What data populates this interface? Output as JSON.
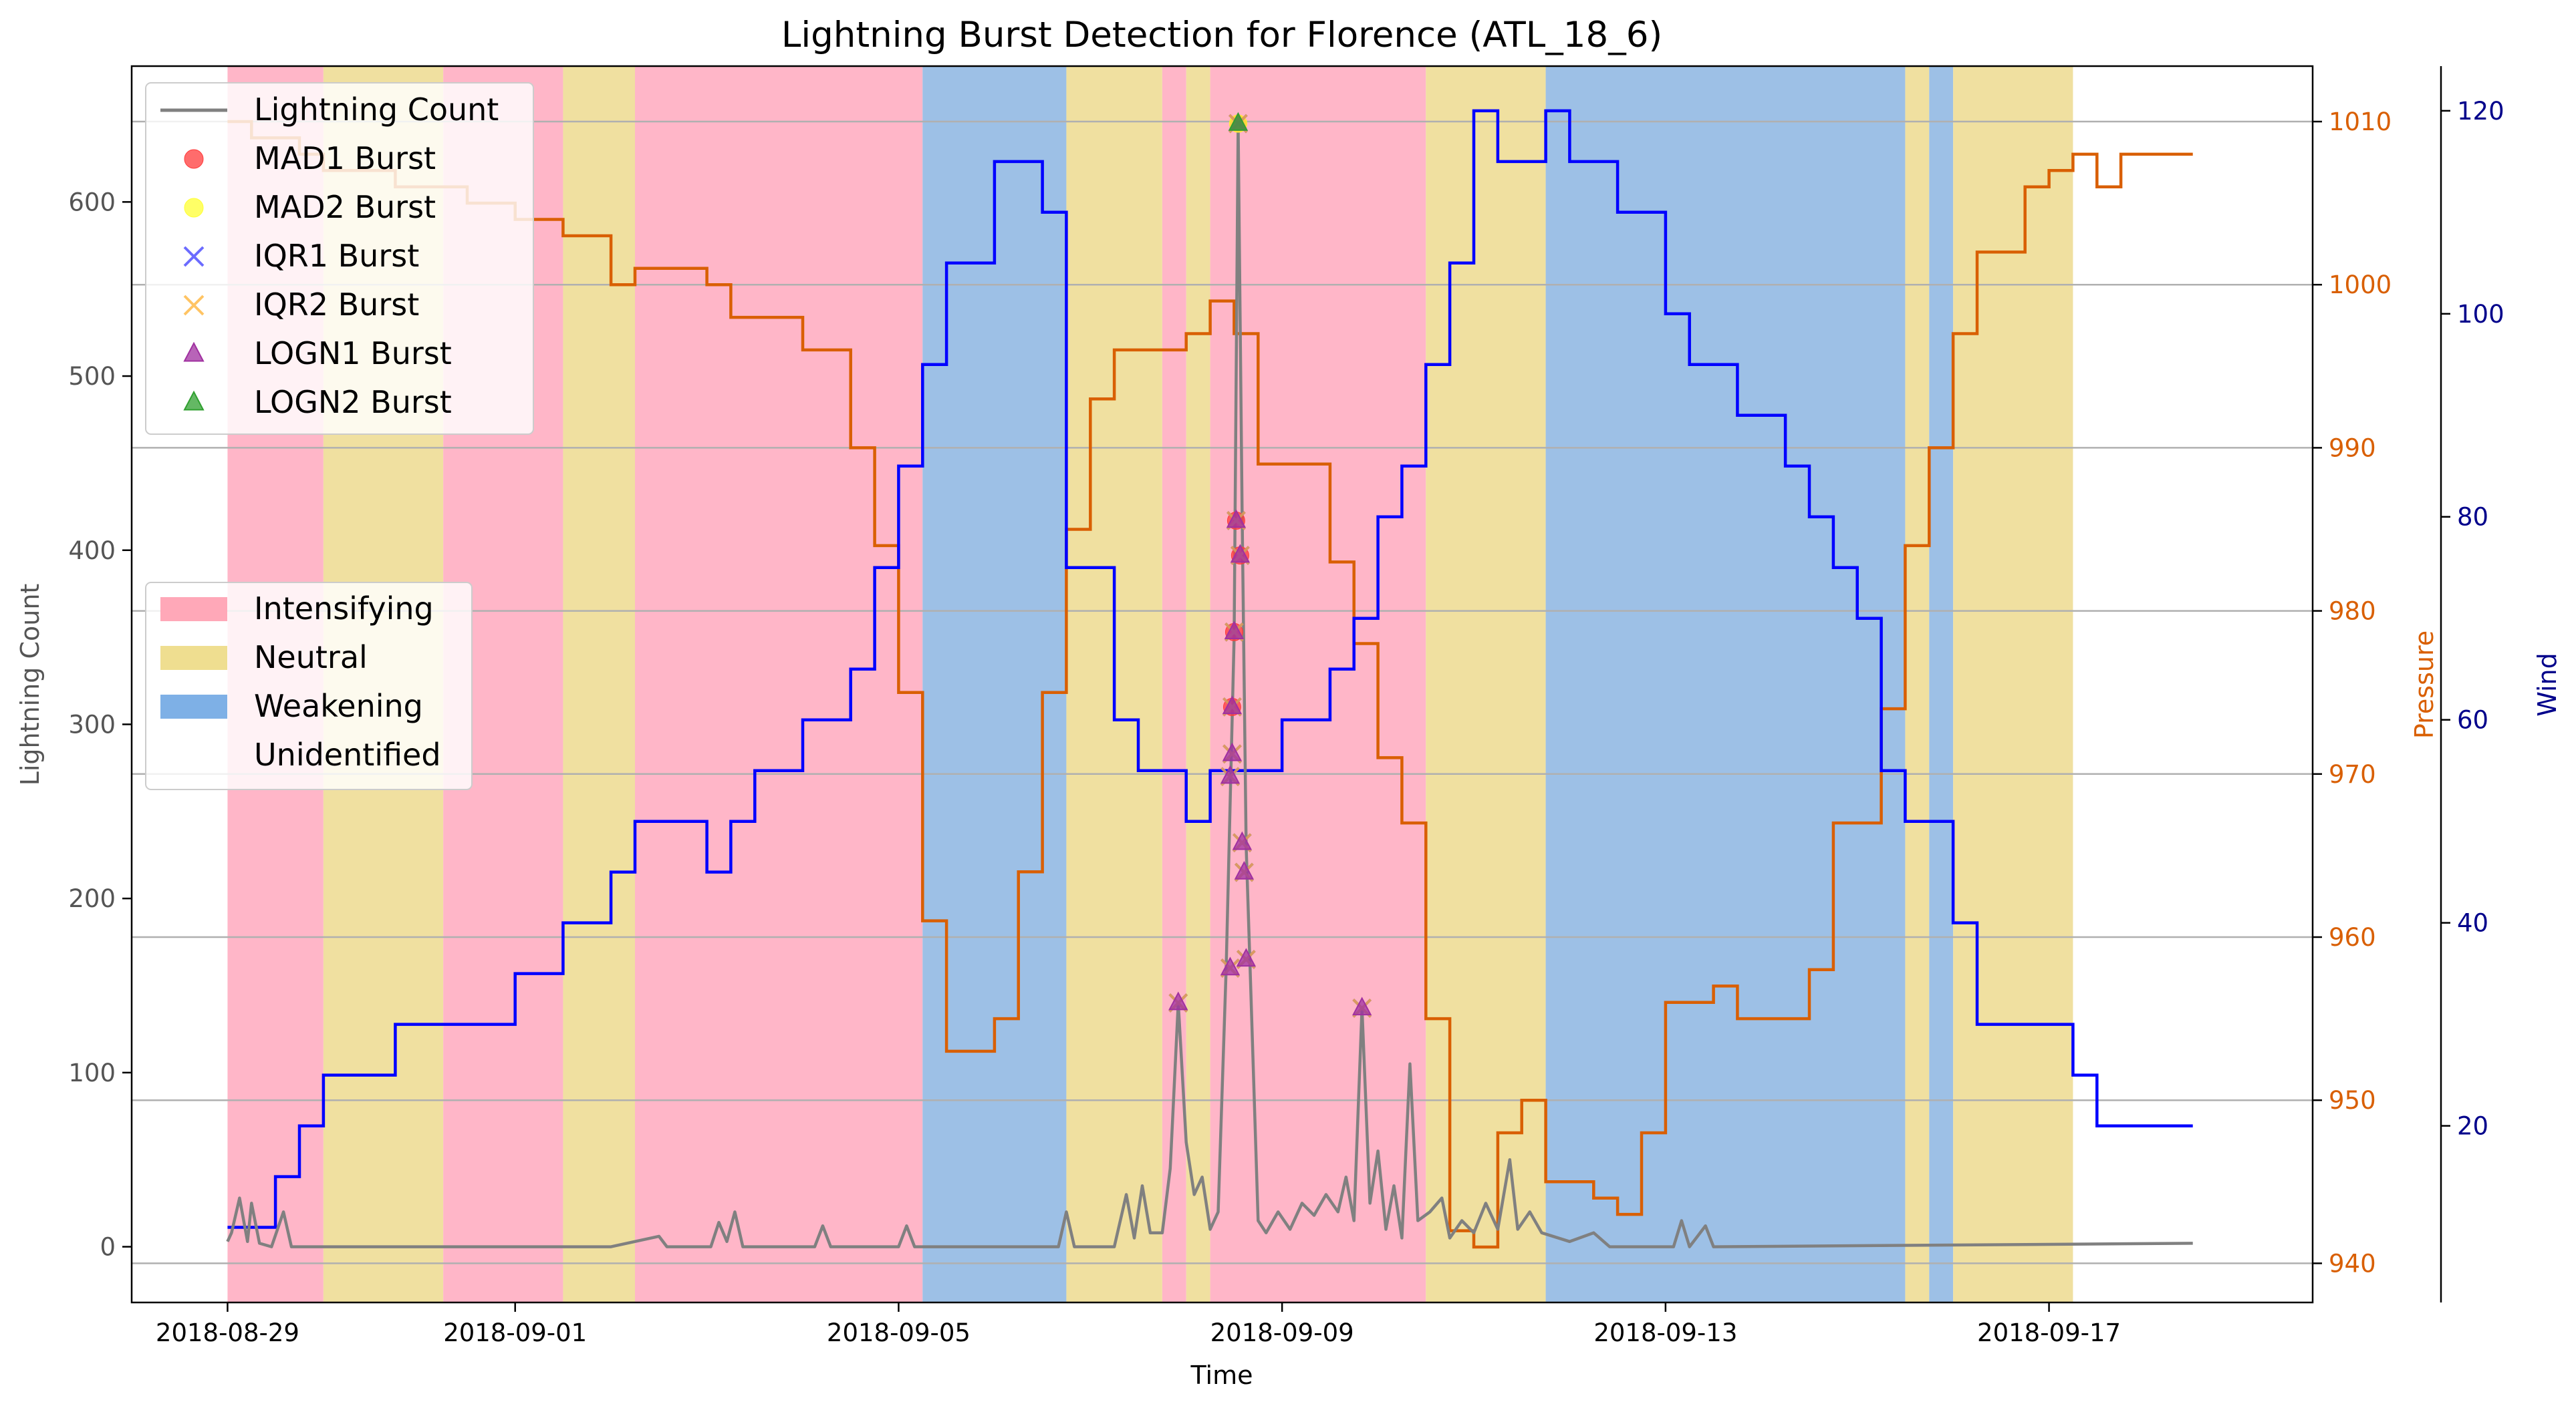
{
  "chart_data": {
    "type": "line",
    "title": "Lightning Burst Detection for Florence (ATL_18_6)",
    "xlabel": "Time",
    "ylabel": "Lightning Count",
    "ylabel_right1": "Pressure",
    "ylabel_right2": "Wind",
    "colors": {
      "lightning": "#808080",
      "pressure": "#d95f02",
      "wind": "#0000ff",
      "intensifying": "#ffb6c8",
      "neutral": "#f0e0a0",
      "weakening": "#9dc0e6",
      "mad1": "#ff3b3b",
      "mad2": "#ffff33",
      "iqr1": "#3b3bff",
      "iqr2": "#ffb030",
      "logn1": "#a030a0",
      "logn2": "#30a030"
    },
    "x_ticks": [
      "2018-08-29",
      "2018-09-01",
      "2018-09-05",
      "2018-09-09",
      "2018-09-13",
      "2018-09-17"
    ],
    "xlim": [
      "2018-08-28 00:00",
      "2018-09-19 18:00"
    ],
    "y_ticks": [
      0,
      100,
      200,
      300,
      400,
      500,
      600
    ],
    "ylim": [
      -32,
      678
    ],
    "pressure_ticks": [
      940,
      950,
      960,
      970,
      980,
      990,
      1000,
      1010
    ],
    "pressure_lim": [
      937.6,
      1013.4
    ],
    "wind_ticks": [
      20,
      40,
      60,
      80,
      100,
      120
    ],
    "wind_lim": [
      2.6,
      124.4
    ],
    "grid": "horizontal lines at pressure ticks",
    "legend_lines": [
      {
        "key": "lightning",
        "label": "Lightning Count",
        "marker": "line"
      },
      {
        "key": "mad1",
        "label": "MAD1 Burst",
        "marker": "circle"
      },
      {
        "key": "mad2",
        "label": "MAD2 Burst",
        "marker": "circle"
      },
      {
        "key": "iqr1",
        "label": "IQR1 Burst",
        "marker": "x"
      },
      {
        "key": "iqr2",
        "label": "IQR2 Burst",
        "marker": "x"
      },
      {
        "key": "logn1",
        "label": "LOGN1 Burst",
        "marker": "triangle"
      },
      {
        "key": "logn2",
        "label": "LOGN2 Burst",
        "marker": "triangle"
      }
    ],
    "legend_regions": [
      {
        "key": "intensifying",
        "label": "Intensifying"
      },
      {
        "key": "neutral",
        "label": "Neutral"
      },
      {
        "key": "weakening",
        "label": "Weakening"
      },
      {
        "key": "unidentified",
        "label": "Unidentified"
      }
    ],
    "regions": [
      {
        "state": "intensifying",
        "start": "2018-08-29 00:00",
        "end": "2018-08-30 00:00"
      },
      {
        "state": "neutral",
        "start": "2018-08-30 00:00",
        "end": "2018-08-31 06:00"
      },
      {
        "state": "intensifying",
        "start": "2018-08-31 06:00",
        "end": "2018-09-01 12:00"
      },
      {
        "state": "neutral",
        "start": "2018-09-01 12:00",
        "end": "2018-09-02 06:00"
      },
      {
        "state": "intensifying",
        "start": "2018-09-02 06:00",
        "end": "2018-09-05 06:00"
      },
      {
        "state": "weakening",
        "start": "2018-09-05 06:00",
        "end": "2018-09-06 18:00"
      },
      {
        "state": "neutral",
        "start": "2018-09-06 18:00",
        "end": "2018-09-07 18:00"
      },
      {
        "state": "intensifying",
        "start": "2018-09-07 18:00",
        "end": "2018-09-08 00:00"
      },
      {
        "state": "neutral",
        "start": "2018-09-08 00:00",
        "end": "2018-09-08 06:00"
      },
      {
        "state": "intensifying",
        "start": "2018-09-08 06:00",
        "end": "2018-09-10 12:00"
      },
      {
        "state": "neutral",
        "start": "2018-09-10 12:00",
        "end": "2018-09-11 18:00"
      },
      {
        "state": "weakening",
        "start": "2018-09-11 18:00",
        "end": "2018-09-15 12:00"
      },
      {
        "state": "neutral",
        "start": "2018-09-15 12:00",
        "end": "2018-09-15 18:00"
      },
      {
        "state": "weakening",
        "start": "2018-09-15 18:00",
        "end": "2018-09-16 00:00"
      },
      {
        "state": "neutral",
        "start": "2018-09-16 00:00",
        "end": "2018-09-17 06:00"
      }
    ],
    "pressure_series": [
      [
        "2018-08-29 00:00",
        1010
      ],
      [
        "2018-08-29 06:00",
        1009
      ],
      [
        "2018-08-29 18:00",
        1008
      ],
      [
        "2018-08-30 00:00",
        1007
      ],
      [
        "2018-08-30 18:00",
        1006
      ],
      [
        "2018-08-31 12:00",
        1005
      ],
      [
        "2018-09-01 00:00",
        1004
      ],
      [
        "2018-09-01 12:00",
        1003
      ],
      [
        "2018-09-02 00:00",
        1000
      ],
      [
        "2018-09-02 06:00",
        1001
      ],
      [
        "2018-09-03 00:00",
        1000
      ],
      [
        "2018-09-03 06:00",
        998
      ],
      [
        "2018-09-04 00:00",
        996
      ],
      [
        "2018-09-04 12:00",
        990
      ],
      [
        "2018-09-04 18:00",
        984
      ],
      [
        "2018-09-05 00:00",
        975
      ],
      [
        "2018-09-05 06:00",
        961
      ],
      [
        "2018-09-05 12:00",
        953
      ],
      [
        "2018-09-06 00:00",
        955
      ],
      [
        "2018-09-06 06:00",
        964
      ],
      [
        "2018-09-06 12:00",
        975
      ],
      [
        "2018-09-06 18:00",
        985
      ],
      [
        "2018-09-07 00:00",
        993
      ],
      [
        "2018-09-07 06:00",
        996
      ],
      [
        "2018-09-08 00:00",
        997
      ],
      [
        "2018-09-08 06:00",
        999
      ],
      [
        "2018-09-08 12:00",
        997
      ],
      [
        "2018-09-08 18:00",
        989
      ],
      [
        "2018-09-09 12:00",
        983
      ],
      [
        "2018-09-09 18:00",
        978
      ],
      [
        "2018-09-10 00:00",
        971
      ],
      [
        "2018-09-10 06:00",
        967
      ],
      [
        "2018-09-10 12:00",
        955
      ],
      [
        "2018-09-10 18:00",
        942
      ],
      [
        "2018-09-11 00:00",
        941
      ],
      [
        "2018-09-11 06:00",
        948
      ],
      [
        "2018-09-11 12:00",
        950
      ],
      [
        "2018-09-11 18:00",
        945
      ],
      [
        "2018-09-12 06:00",
        944
      ],
      [
        "2018-09-12 12:00",
        943
      ],
      [
        "2018-09-12 18:00",
        948
      ],
      [
        "2018-09-13 00:00",
        956
      ],
      [
        "2018-09-13 12:00",
        957
      ],
      [
        "2018-09-13 18:00",
        955
      ],
      [
        "2018-09-14 12:00",
        958
      ],
      [
        "2018-09-14 18:00",
        967
      ],
      [
        "2018-09-15 06:00",
        974
      ],
      [
        "2018-09-15 12:00",
        984
      ],
      [
        "2018-09-15 18:00",
        990
      ],
      [
        "2018-09-16 00:00",
        997
      ],
      [
        "2018-09-16 06:00",
        1002
      ],
      [
        "2018-09-16 18:00",
        1006
      ],
      [
        "2018-09-17 00:00",
        1007
      ],
      [
        "2018-09-17 06:00",
        1008
      ],
      [
        "2018-09-17 12:00",
        1006
      ],
      [
        "2018-09-17 18:00",
        1008
      ],
      [
        "2018-09-18 12:00",
        1008
      ]
    ],
    "wind_series": [
      [
        "2018-08-29 00:00",
        10
      ],
      [
        "2018-08-29 12:00",
        15
      ],
      [
        "2018-08-29 18:00",
        20
      ],
      [
        "2018-08-30 00:00",
        25
      ],
      [
        "2018-08-30 18:00",
        30
      ],
      [
        "2018-08-31 12:00",
        30
      ],
      [
        "2018-09-01 00:00",
        35
      ],
      [
        "2018-09-01 12:00",
        40
      ],
      [
        "2018-09-02 00:00",
        45
      ],
      [
        "2018-09-02 06:00",
        50
      ],
      [
        "2018-09-03 00:00",
        45
      ],
      [
        "2018-09-03 06:00",
        50
      ],
      [
        "2018-09-03 12:00",
        55
      ],
      [
        "2018-09-04 00:00",
        60
      ],
      [
        "2018-09-04 12:00",
        65
      ],
      [
        "2018-09-04 18:00",
        75
      ],
      [
        "2018-09-05 00:00",
        85
      ],
      [
        "2018-09-05 06:00",
        95
      ],
      [
        "2018-09-05 12:00",
        105
      ],
      [
        "2018-09-06 00:00",
        115
      ],
      [
        "2018-09-06 12:00",
        110
      ],
      [
        "2018-09-06 18:00",
        75
      ],
      [
        "2018-09-07 06:00",
        60
      ],
      [
        "2018-09-07 12:00",
        55
      ],
      [
        "2018-09-08 00:00",
        50
      ],
      [
        "2018-09-08 06:00",
        55
      ],
      [
        "2018-09-08 12:00",
        55
      ],
      [
        "2018-09-09 00:00",
        60
      ],
      [
        "2018-09-09 12:00",
        65
      ],
      [
        "2018-09-09 18:00",
        70
      ],
      [
        "2018-09-10 00:00",
        80
      ],
      [
        "2018-09-10 06:00",
        85
      ],
      [
        "2018-09-10 12:00",
        95
      ],
      [
        "2018-09-10 18:00",
        105
      ],
      [
        "2018-09-11 00:00",
        120
      ],
      [
        "2018-09-11 06:00",
        115
      ],
      [
        "2018-09-11 18:00",
        120
      ],
      [
        "2018-09-12 00:00",
        115
      ],
      [
        "2018-09-12 12:00",
        110
      ],
      [
        "2018-09-13 00:00",
        100
      ],
      [
        "2018-09-13 06:00",
        95
      ],
      [
        "2018-09-13 18:00",
        90
      ],
      [
        "2018-09-14 06:00",
        85
      ],
      [
        "2018-09-14 12:00",
        80
      ],
      [
        "2018-09-14 18:00",
        75
      ],
      [
        "2018-09-15 00:00",
        70
      ],
      [
        "2018-09-15 06:00",
        55
      ],
      [
        "2018-09-15 12:00",
        50
      ],
      [
        "2018-09-16 00:00",
        40
      ],
      [
        "2018-09-16 06:00",
        30
      ],
      [
        "2018-09-17 06:00",
        25
      ],
      [
        "2018-09-17 12:00",
        20
      ],
      [
        "2018-09-18 12:00",
        20
      ]
    ],
    "lightning_series": [
      [
        "2018-08-29 00:00",
        3
      ],
      [
        "2018-08-29 01:00",
        8
      ],
      [
        "2018-08-29 03:00",
        28
      ],
      [
        "2018-08-29 05:00",
        3
      ],
      [
        "2018-08-29 06:00",
        25
      ],
      [
        "2018-08-29 08:00",
        2
      ],
      [
        "2018-08-29 11:00",
        0
      ],
      [
        "2018-08-29 14:00",
        20
      ],
      [
        "2018-08-29 16:00",
        0
      ],
      [
        "2018-08-30 00:00",
        0
      ],
      [
        "2018-09-02 00:00",
        0
      ],
      [
        "2018-09-02 12:00",
        6
      ],
      [
        "2018-09-02 14:00",
        0
      ],
      [
        "2018-09-03 01:00",
        0
      ],
      [
        "2018-09-03 03:00",
        14
      ],
      [
        "2018-09-03 05:00",
        3
      ],
      [
        "2018-09-03 07:00",
        20
      ],
      [
        "2018-09-03 09:00",
        0
      ],
      [
        "2018-09-04 03:00",
        0
      ],
      [
        "2018-09-04 05:00",
        12
      ],
      [
        "2018-09-04 07:00",
        0
      ],
      [
        "2018-09-05 00:00",
        0
      ],
      [
        "2018-09-05 02:00",
        12
      ],
      [
        "2018-09-05 04:00",
        0
      ],
      [
        "2018-09-06 16:00",
        0
      ],
      [
        "2018-09-06 18:00",
        20
      ],
      [
        "2018-09-06 20:00",
        0
      ],
      [
        "2018-09-07 06:00",
        0
      ],
      [
        "2018-09-07 09:00",
        30
      ],
      [
        "2018-09-07 11:00",
        5
      ],
      [
        "2018-09-07 13:00",
        35
      ],
      [
        "2018-09-07 15:00",
        8
      ],
      [
        "2018-09-07 18:00",
        8
      ],
      [
        "2018-09-07 20:00",
        45
      ],
      [
        "2018-09-07 22:00",
        140
      ],
      [
        "2018-09-08 00:00",
        60
      ],
      [
        "2018-09-08 02:00",
        30
      ],
      [
        "2018-09-08 04:00",
        40
      ],
      [
        "2018-09-08 06:00",
        10
      ],
      [
        "2018-09-08 08:00",
        20
      ],
      [
        "2018-09-08 10:00",
        160
      ],
      [
        "2018-09-08 12:00",
        350
      ],
      [
        "2018-09-08 13:00",
        645
      ],
      [
        "2018-09-08 14:00",
        420
      ],
      [
        "2018-09-08 15:00",
        230
      ],
      [
        "2018-09-08 16:00",
        160
      ],
      [
        "2018-09-08 18:00",
        15
      ],
      [
        "2018-09-08 20:00",
        8
      ],
      [
        "2018-09-08 23:00",
        20
      ],
      [
        "2018-09-09 02:00",
        10
      ],
      [
        "2018-09-09 05:00",
        25
      ],
      [
        "2018-09-09 08:00",
        18
      ],
      [
        "2018-09-09 11:00",
        30
      ],
      [
        "2018-09-09 14:00",
        20
      ],
      [
        "2018-09-09 16:00",
        40
      ],
      [
        "2018-09-09 18:00",
        15
      ],
      [
        "2018-09-09 20:00",
        137
      ],
      [
        "2018-09-09 22:00",
        25
      ],
      [
        "2018-09-10 00:00",
        55
      ],
      [
        "2018-09-10 02:00",
        10
      ],
      [
        "2018-09-10 04:00",
        35
      ],
      [
        "2018-09-10 06:00",
        5
      ],
      [
        "2018-09-10 08:00",
        105
      ],
      [
        "2018-09-10 10:00",
        15
      ],
      [
        "2018-09-10 13:00",
        20
      ],
      [
        "2018-09-10 16:00",
        28
      ],
      [
        "2018-09-10 18:00",
        5
      ],
      [
        "2018-09-10 21:00",
        15
      ],
      [
        "2018-09-11 00:00",
        8
      ],
      [
        "2018-09-11 03:00",
        25
      ],
      [
        "2018-09-11 06:00",
        10
      ],
      [
        "2018-09-11 09:00",
        50
      ],
      [
        "2018-09-11 11:00",
        10
      ],
      [
        "2018-09-11 14:00",
        20
      ],
      [
        "2018-09-11 17:00",
        8
      ],
      [
        "2018-09-12 00:00",
        3
      ],
      [
        "2018-09-12 06:00",
        8
      ],
      [
        "2018-09-12 10:00",
        0
      ],
      [
        "2018-09-13 02:00",
        0
      ],
      [
        "2018-09-13 04:00",
        15
      ],
      [
        "2018-09-13 06:00",
        0
      ],
      [
        "2018-09-13 10:00",
        12
      ],
      [
        "2018-09-13 12:00",
        0
      ],
      [
        "2018-09-18 12:00",
        2
      ]
    ],
    "bursts": [
      {
        "time": "2018-09-07 22:00",
        "value": 140,
        "types": [
          "iqr1",
          "iqr2",
          "logn1"
        ]
      },
      {
        "time": "2018-09-08 11:00",
        "value": 160,
        "types": [
          "iqr1",
          "iqr2",
          "logn1"
        ]
      },
      {
        "time": "2018-09-08 11:00",
        "value": 270,
        "types": [
          "iqr1",
          "iqr2",
          "logn1"
        ]
      },
      {
        "time": "2018-09-08 11:30",
        "value": 283,
        "types": [
          "iqr1",
          "iqr2",
          "logn1"
        ]
      },
      {
        "time": "2018-09-08 11:30",
        "value": 310,
        "types": [
          "mad1",
          "iqr1",
          "iqr2",
          "logn1"
        ]
      },
      {
        "time": "2018-09-08 12:00",
        "value": 353,
        "types": [
          "mad1",
          "iqr1",
          "iqr2",
          "logn1"
        ]
      },
      {
        "time": "2018-09-08 12:30",
        "value": 417,
        "types": [
          "mad1",
          "iqr1",
          "iqr2",
          "logn1"
        ]
      },
      {
        "time": "2018-09-08 13:00",
        "value": 645,
        "types": [
          "mad1",
          "mad2",
          "iqr1",
          "iqr2",
          "logn1",
          "logn2"
        ]
      },
      {
        "time": "2018-09-08 13:30",
        "value": 397,
        "types": [
          "mad1",
          "iqr1",
          "iqr2",
          "logn1"
        ]
      },
      {
        "time": "2018-09-08 14:00",
        "value": 232,
        "types": [
          "iqr1",
          "iqr2",
          "logn1"
        ]
      },
      {
        "time": "2018-09-08 14:30",
        "value": 215,
        "types": [
          "iqr1",
          "iqr2",
          "logn1"
        ]
      },
      {
        "time": "2018-09-08 15:00",
        "value": 165,
        "types": [
          "iqr1",
          "iqr2",
          "logn1"
        ]
      },
      {
        "time": "2018-09-09 20:00",
        "value": 137,
        "types": [
          "iqr1",
          "iqr2",
          "logn1"
        ]
      }
    ]
  }
}
